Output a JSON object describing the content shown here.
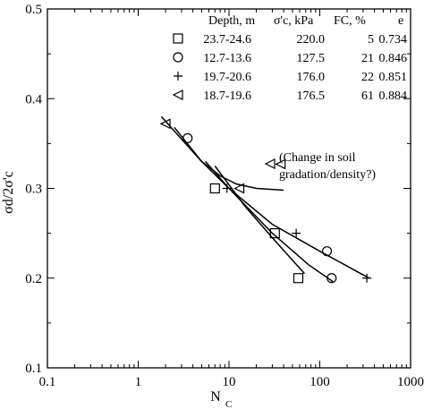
{
  "chart_data": {
    "type": "scatter",
    "x_scale": "log",
    "xlim": [
      0.1,
      1000
    ],
    "ylim": [
      0.1,
      0.5
    ],
    "xlabel": "N",
    "xlabel_sub": "C",
    "ylabel": "σd/2σ'c",
    "x_ticks": [
      {
        "value": 0.1,
        "label": "0.1"
      },
      {
        "value": 1,
        "label": "1"
      },
      {
        "value": 10,
        "label": "10"
      },
      {
        "value": 100,
        "label": "100"
      },
      {
        "value": 1000,
        "label": "1000"
      }
    ],
    "y_ticks": [
      {
        "value": 0.1,
        "label": "0.1"
      },
      {
        "value": 0.2,
        "label": "0.2"
      },
      {
        "value": 0.3,
        "label": "0.3"
      },
      {
        "value": 0.4,
        "label": "0.4"
      },
      {
        "value": 0.5,
        "label": "0.5"
      }
    ],
    "legend": {
      "placement": "top-right",
      "headers": [
        "Depth, m",
        "σ'c, kPa",
        "FC, %",
        "e"
      ],
      "rows": [
        {
          "marker": "square",
          "depth": "23.7-24.6",
          "sigma_c": "220.0",
          "fc": "5",
          "e": "0.734"
        },
        {
          "marker": "circle",
          "depth": "12.7-13.6",
          "sigma_c": "127.5",
          "fc": "21",
          "e": "0.846"
        },
        {
          "marker": "plus",
          "depth": "19.7-20.6",
          "sigma_c": "176.0",
          "fc": "22",
          "e": "0.851"
        },
        {
          "marker": "triangle-left",
          "depth": "18.7-19.6",
          "sigma_c": "176.5",
          "fc": "61",
          "e": "0.884"
        }
      ]
    },
    "series": [
      {
        "marker": "square",
        "points": [
          [
            7,
            0.3
          ],
          [
            32,
            0.25
          ],
          [
            58,
            0.2
          ]
        ]
      },
      {
        "marker": "circle",
        "points": [
          [
            3.5,
            0.356
          ],
          [
            120,
            0.23
          ],
          [
            135,
            0.2
          ]
        ]
      },
      {
        "marker": "plus",
        "points": [
          [
            9.5,
            0.3
          ],
          [
            55,
            0.25
          ],
          [
            330,
            0.2
          ]
        ]
      },
      {
        "marker": "triangle-left",
        "points": [
          [
            2,
            0.372
          ],
          [
            13,
            0.3
          ],
          [
            37,
            0.327
          ]
        ]
      }
    ],
    "fit_lines": [
      {
        "marker": "triangle-left",
        "points": [
          [
            1.8,
            0.38
          ],
          [
            3,
            0.355
          ],
          [
            5,
            0.33
          ],
          [
            8,
            0.314
          ],
          [
            12,
            0.305
          ],
          [
            20,
            0.3
          ],
          [
            40,
            0.298
          ]
        ]
      },
      {
        "marker": "plus",
        "points": [
          [
            2.5,
            0.368
          ],
          [
            5,
            0.33
          ],
          [
            10,
            0.3
          ],
          [
            30,
            0.26
          ],
          [
            100,
            0.23
          ],
          [
            350,
            0.2
          ]
        ]
      },
      {
        "marker": "circle",
        "points": [
          [
            5.5,
            0.33
          ],
          [
            10,
            0.3
          ],
          [
            30,
            0.25
          ],
          [
            75,
            0.215
          ],
          [
            140,
            0.196
          ]
        ]
      },
      {
        "marker": "square",
        "points": [
          [
            7,
            0.325
          ],
          [
            15,
            0.28
          ],
          [
            30,
            0.245
          ],
          [
            68,
            0.205
          ]
        ]
      }
    ],
    "annotation": {
      "marker": "triangle-left",
      "lines": [
        "(Change in soil",
        "gradation/density?)"
      ]
    }
  }
}
